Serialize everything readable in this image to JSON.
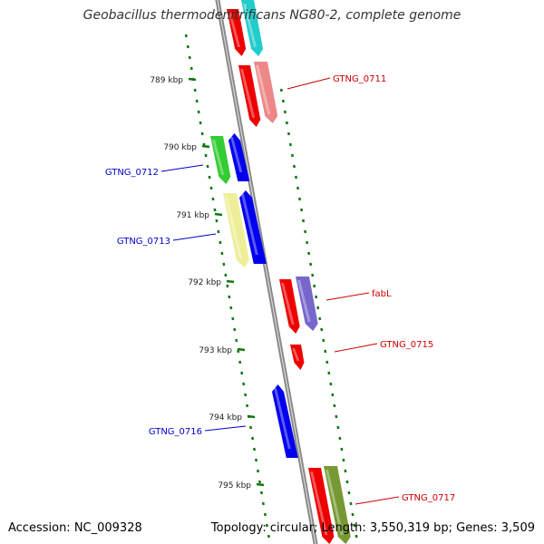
{
  "title": "Geobacillus thermodenitrificans NG80-2, complete genome",
  "accession": "Accession: NC_009328",
  "topology": "Topology: circular; Length: 3,550,319 bp; Genes: 3,509",
  "scale_labels": [
    "789 kbp",
    "790 kbp",
    "791 kbp",
    "792 kbp",
    "793 kbp",
    "794 kbp",
    "795 kbp"
  ],
  "gene_labels": [
    {
      "text": "GTNG_0711",
      "strand": "forward"
    },
    {
      "text": "GTNG_0712",
      "strand": "reverse"
    },
    {
      "text": "GTNG_0713",
      "strand": "reverse"
    },
    {
      "text": "fabL",
      "strand": "forward"
    },
    {
      "text": "GTNG_0715",
      "strand": "forward"
    },
    {
      "text": "GTNG_0716",
      "strand": "reverse"
    },
    {
      "text": "GTNG_0717",
      "strand": "forward"
    }
  ],
  "colors": {
    "forward_label": "#cc0000",
    "reverse_label": "#0000cc",
    "backbone": "#888888",
    "tick": "#117711",
    "red": "#ee0000",
    "cyan": "#22cccc",
    "salmon": "#ee8888",
    "green": "#33cc33",
    "blue": "#0000ee",
    "yellow": "#eeee99",
    "purple": "#7766cc",
    "olive": "#779933"
  }
}
